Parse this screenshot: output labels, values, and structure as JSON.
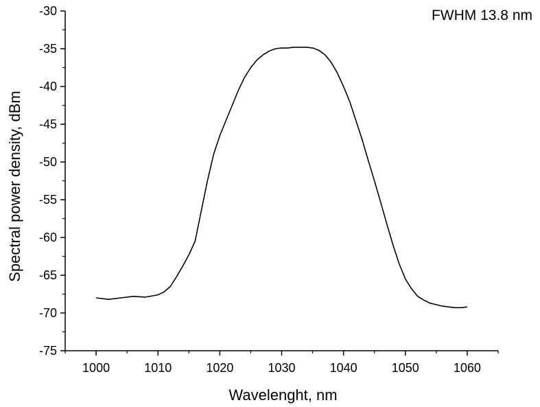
{
  "chart_data": {
    "type": "line",
    "xlabel": "Wavelenght, nm",
    "ylabel": "Spectral power density, dBm",
    "annotation": "FWHM 13.8 nm",
    "xlim": [
      995,
      1065
    ],
    "ylim": [
      -75,
      -30
    ],
    "x_ticks": [
      1000,
      1010,
      1020,
      1030,
      1040,
      1050,
      1060
    ],
    "y_ticks": [
      -30,
      -35,
      -40,
      -45,
      -50,
      -55,
      -60,
      -65,
      -70,
      -75
    ],
    "grid": false,
    "line_color": "#000000",
    "series": [
      {
        "x": [
          1000,
          1002,
          1004,
          1006,
          1008,
          1010,
          1011,
          1012,
          1013,
          1014,
          1015,
          1016,
          1017,
          1018,
          1019,
          1020,
          1021,
          1022,
          1023,
          1024,
          1025,
          1026,
          1027,
          1028,
          1029,
          1030,
          1031,
          1032,
          1033,
          1034,
          1035,
          1036,
          1037,
          1038,
          1039,
          1040,
          1041,
          1042,
          1043,
          1044,
          1045,
          1046,
          1047,
          1048,
          1049,
          1050,
          1051,
          1052,
          1053,
          1054,
          1055,
          1056,
          1057,
          1058,
          1059,
          1060
        ],
        "y": [
          -68.0,
          -68.2,
          -68.0,
          -67.8,
          -67.9,
          -67.6,
          -67.2,
          -66.5,
          -65.2,
          -63.8,
          -62.3,
          -60.5,
          -56.5,
          -52.5,
          -49.0,
          -46.5,
          -44.5,
          -42.5,
          -40.5,
          -38.8,
          -37.5,
          -36.5,
          -35.8,
          -35.3,
          -35.0,
          -34.9,
          -34.9,
          -34.8,
          -34.8,
          -34.8,
          -34.9,
          -35.2,
          -35.8,
          -36.8,
          -38.2,
          -40.0,
          -42.0,
          -44.5,
          -47.0,
          -49.8,
          -52.5,
          -55.3,
          -58.2,
          -61.0,
          -63.5,
          -65.5,
          -66.8,
          -67.8,
          -68.3,
          -68.7,
          -68.9,
          -69.1,
          -69.2,
          -69.3,
          -69.3,
          -69.2
        ]
      }
    ]
  }
}
